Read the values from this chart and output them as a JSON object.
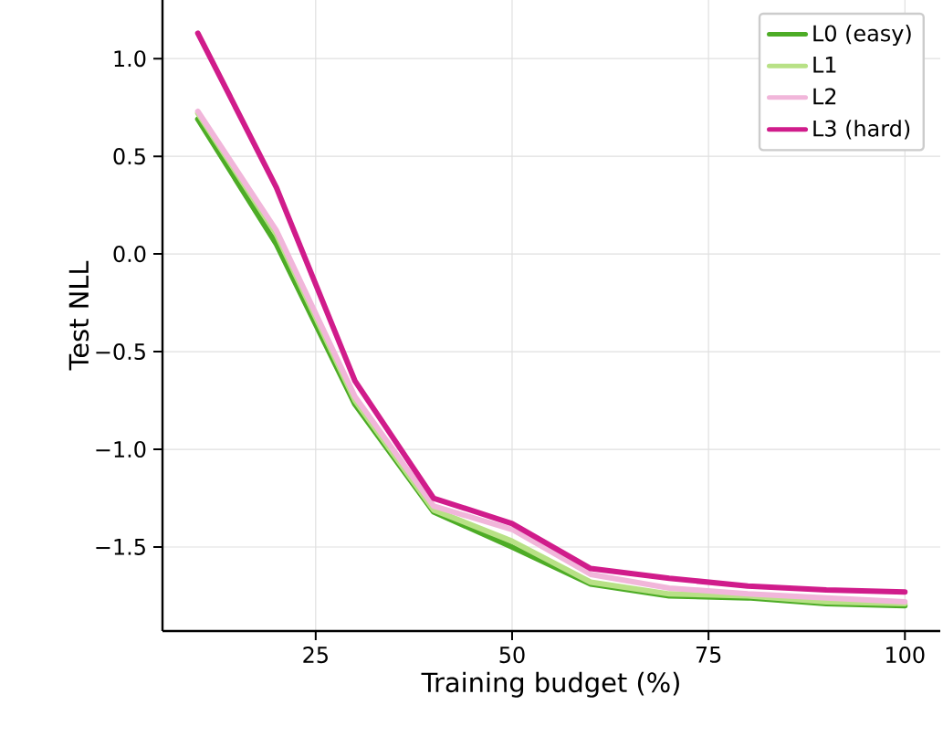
{
  "chart_data": {
    "type": "line",
    "xlabel": "Training budget (%)",
    "ylabel": "Test NLL",
    "x": [
      10,
      20,
      30,
      40,
      50,
      60,
      70,
      80,
      90,
      100
    ],
    "series": [
      {
        "name": "L0 (easy)",
        "color": "#4dac26",
        "values": [
          0.69,
          0.05,
          -0.77,
          -1.32,
          -1.5,
          -1.69,
          -1.75,
          -1.76,
          -1.79,
          -1.8
        ]
      },
      {
        "name": "L1",
        "color": "#b8e186",
        "values": [
          0.72,
          0.1,
          -0.75,
          -1.31,
          -1.47,
          -1.68,
          -1.74,
          -1.75,
          -1.78,
          -1.79
        ]
      },
      {
        "name": "L2",
        "color": "#f1b6da",
        "values": [
          0.73,
          0.12,
          -0.73,
          -1.29,
          -1.41,
          -1.64,
          -1.71,
          -1.74,
          -1.76,
          -1.78
        ]
      },
      {
        "name": "L3 (hard)",
        "color": "#d01c8b",
        "values": [
          1.13,
          0.34,
          -0.65,
          -1.25,
          -1.38,
          -1.61,
          -1.66,
          -1.7,
          -1.72,
          -1.73
        ]
      }
    ],
    "xlim": [
      5.5,
      104.5
    ],
    "xticks": [
      25,
      50,
      75,
      100
    ],
    "ylim": [
      -1.93,
      1.3
    ],
    "yticks": [
      {
        "value": -1.5,
        "label": "−1.5"
      },
      {
        "value": -1.0,
        "label": "−1.0"
      },
      {
        "value": -0.5,
        "label": "−0.5"
      },
      {
        "value": 0.0,
        "label": "0.0"
      },
      {
        "value": 0.5,
        "label": "0.5"
      },
      {
        "value": 1.0,
        "label": "1.0"
      }
    ],
    "grid": true,
    "legend": "top right",
    "marker": "none",
    "line_style": "solid"
  }
}
